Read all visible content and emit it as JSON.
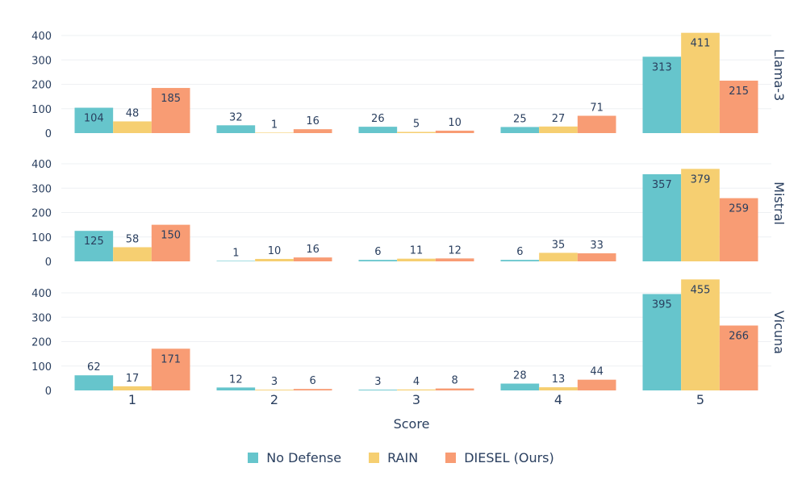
{
  "chart_data": {
    "type": "bar",
    "xlabel": "Score",
    "categories": [
      "1",
      "2",
      "3",
      "4",
      "5"
    ],
    "ylim": [
      0,
      450
    ],
    "yticks": [
      0,
      100,
      200,
      300,
      400
    ],
    "legend_position": "bottom-center",
    "series_meta": [
      {
        "name": "No Defense",
        "color": "#66c5cc"
      },
      {
        "name": "RAIN",
        "color": "#f6cf71"
      },
      {
        "name": "DIESEL (Ours)",
        "color": "#f89c74"
      }
    ],
    "panels": [
      {
        "name": "Llama-3",
        "series": [
          {
            "name": "No Defense",
            "values": [
              104,
              32,
              26,
              25,
              313
            ]
          },
          {
            "name": "RAIN",
            "values": [
              48,
              1,
              5,
              27,
              411
            ]
          },
          {
            "name": "DIESEL (Ours)",
            "values": [
              185,
              16,
              10,
              71,
              215
            ]
          }
        ]
      },
      {
        "name": "Mistral",
        "series": [
          {
            "name": "No Defense",
            "values": [
              125,
              1,
              6,
              6,
              357
            ]
          },
          {
            "name": "RAIN",
            "values": [
              58,
              10,
              11,
              35,
              379
            ]
          },
          {
            "name": "DIESEL (Ours)",
            "values": [
              150,
              16,
              12,
              33,
              259
            ]
          }
        ]
      },
      {
        "name": "Vicuna",
        "series": [
          {
            "name": "No Defense",
            "values": [
              62,
              12,
              3,
              28,
              395
            ]
          },
          {
            "name": "RAIN",
            "values": [
              17,
              3,
              4,
              13,
              455
            ]
          },
          {
            "name": "DIESEL (Ours)",
            "values": [
              171,
              6,
              8,
              44,
              266
            ]
          }
        ]
      }
    ]
  }
}
